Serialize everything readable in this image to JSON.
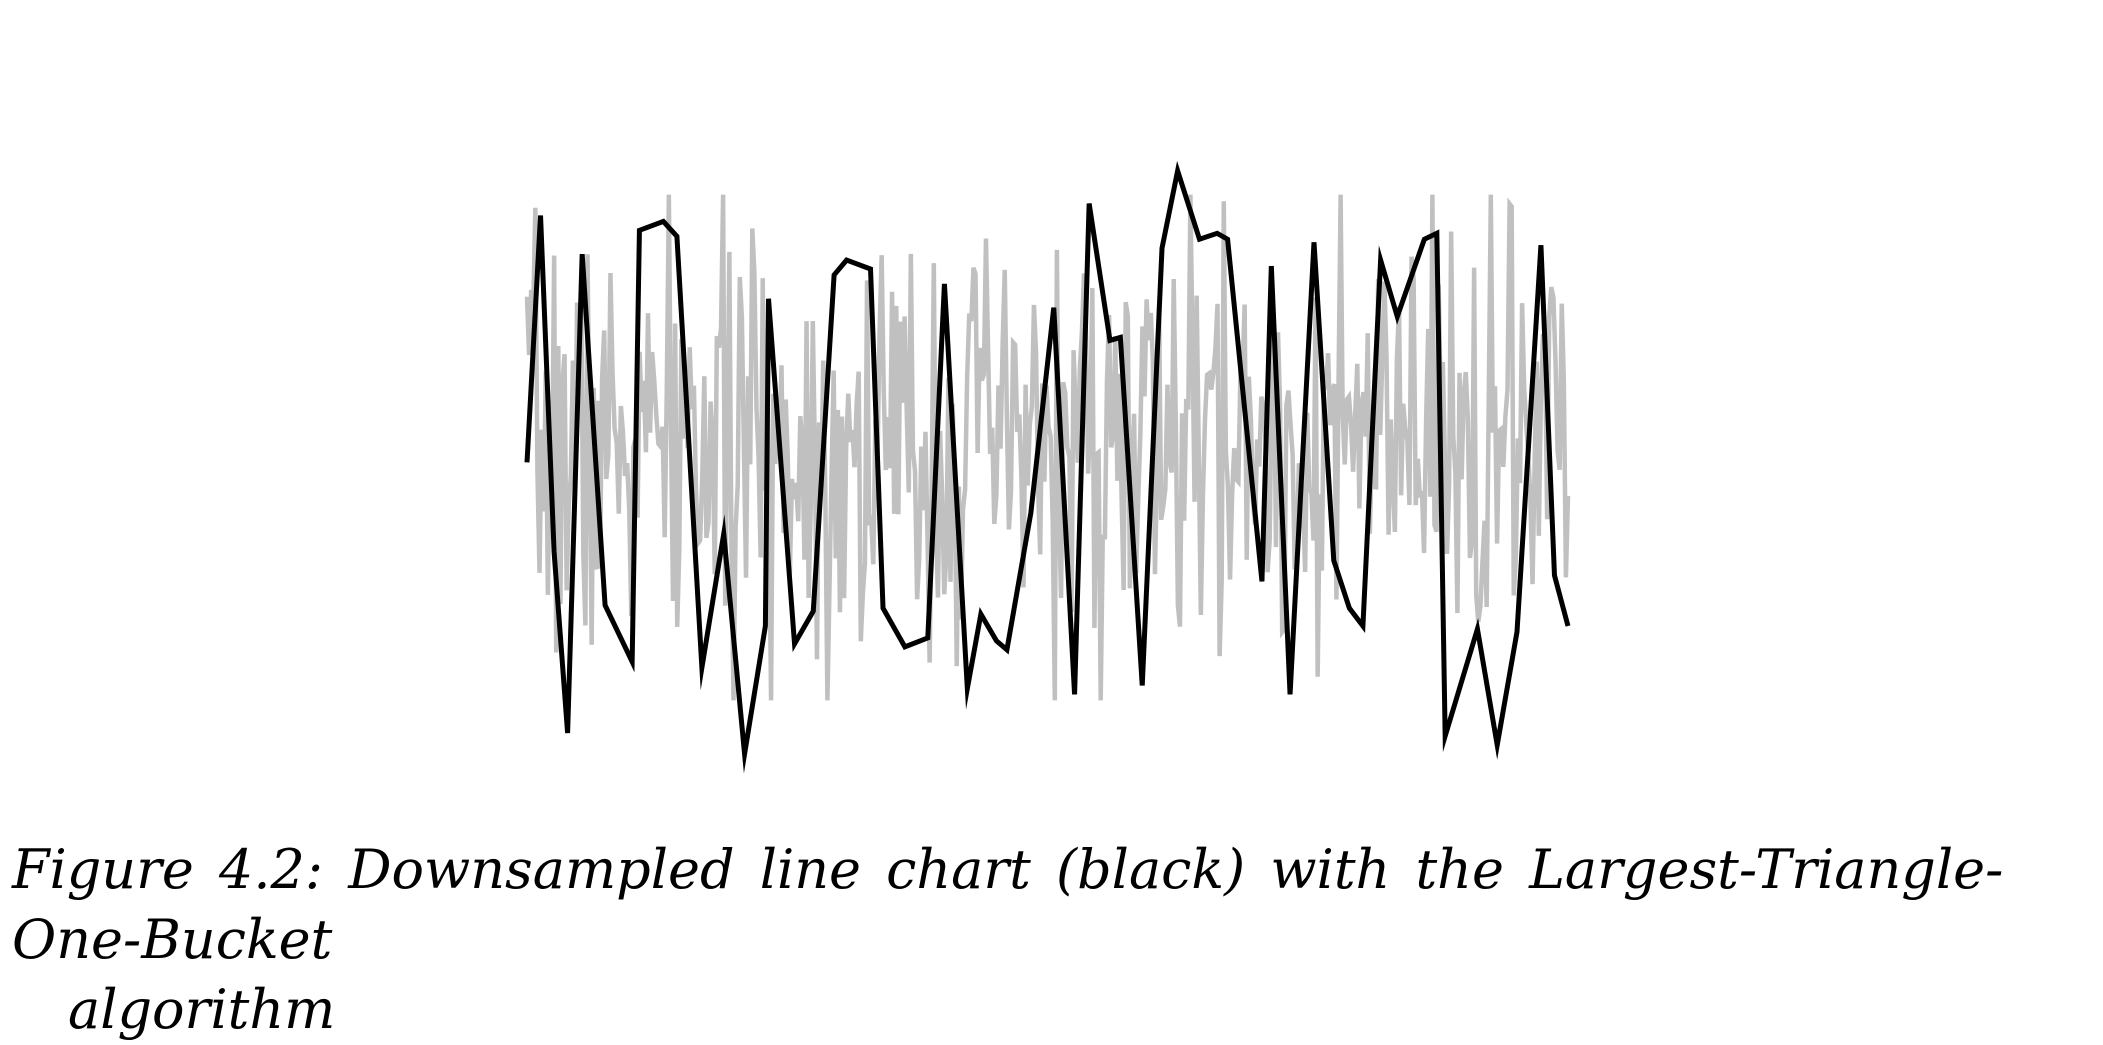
{
  "caption": {
    "line1": "Figure 4.2: Downsampled line chart (black) with the Largest-Triangle-One-Bucket",
    "line2": "algorithm"
  },
  "colors": {
    "original_series": "#c0c0c0",
    "downsampled_series": "#000000",
    "background": "#ffffff"
  },
  "chart_data": {
    "type": "line",
    "title": "",
    "xlabel": "",
    "ylabel": "",
    "axes_visible": false,
    "grid": false,
    "legend": "none",
    "xlim": [
      0,
      100
    ],
    "ylim": [
      -1.0,
      1.0
    ],
    "series": [
      {
        "style": "original-noise",
        "points_count": 500,
        "amplitude_typical": 0.35,
        "amplitude_max": 0.85,
        "seed": 7
      },
      {
        "style": "downsampled",
        "points": [
          [
            0.0,
            -0.05
          ],
          [
            1.3,
            0.78
          ],
          [
            2.6,
            -0.35
          ],
          [
            3.9,
            -0.96
          ],
          [
            5.3,
            0.65
          ],
          [
            7.5,
            -0.53
          ],
          [
            10.1,
            -0.72
          ],
          [
            10.8,
            0.73
          ],
          [
            13.1,
            0.76
          ],
          [
            14.4,
            0.71
          ],
          [
            16.8,
            -0.74
          ],
          [
            18.9,
            -0.29
          ],
          [
            20.9,
            -1.03
          ],
          [
            22.9,
            -0.6
          ],
          [
            23.2,
            0.5
          ],
          [
            25.7,
            -0.66
          ],
          [
            27.5,
            -0.55
          ],
          [
            29.5,
            0.58
          ],
          [
            30.7,
            0.63
          ],
          [
            33.0,
            0.6
          ],
          [
            34.2,
            -0.54
          ],
          [
            36.3,
            -0.67
          ],
          [
            38.5,
            -0.64
          ],
          [
            40.1,
            0.55
          ],
          [
            42.3,
            -0.81
          ],
          [
            43.6,
            -0.56
          ],
          [
            45.1,
            -0.65
          ],
          [
            46.1,
            -0.68
          ],
          [
            48.4,
            -0.22
          ],
          [
            50.6,
            0.47
          ],
          [
            52.6,
            -0.83
          ],
          [
            54.0,
            0.82
          ],
          [
            56.0,
            0.36
          ],
          [
            57.0,
            0.37
          ],
          [
            59.1,
            -0.8
          ],
          [
            61.0,
            0.67
          ],
          [
            62.5,
            0.93
          ],
          [
            64.6,
            0.7
          ],
          [
            66.3,
            0.72
          ],
          [
            67.3,
            0.7
          ],
          [
            70.6,
            -0.45
          ],
          [
            71.5,
            0.61
          ],
          [
            73.3,
            -0.83
          ],
          [
            75.6,
            0.69
          ],
          [
            77.5,
            -0.38
          ],
          [
            79.0,
            -0.54
          ],
          [
            80.3,
            -0.6
          ],
          [
            82.0,
            0.63
          ],
          [
            83.6,
            0.44
          ],
          [
            86.2,
            0.7
          ],
          [
            87.4,
            0.72
          ],
          [
            88.2,
            -0.97
          ],
          [
            91.3,
            -0.61
          ],
          [
            93.2,
            -1.0
          ],
          [
            95.1,
            -0.62
          ],
          [
            97.4,
            0.68
          ],
          [
            98.7,
            -0.43
          ],
          [
            100.0,
            -0.6
          ]
        ]
      }
    ]
  }
}
